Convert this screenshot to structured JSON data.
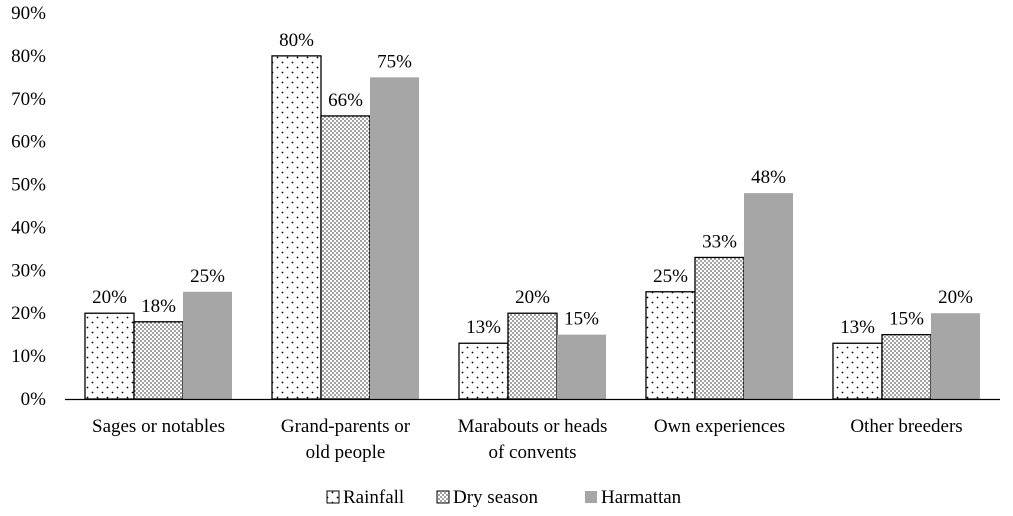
{
  "chart_data": {
    "type": "bar",
    "title": "",
    "xlabel": "",
    "ylabel": "",
    "ylim": [
      0,
      90
    ],
    "yticks": [
      "0%",
      "10%",
      "20%",
      "30%",
      "40%",
      "50%",
      "60%",
      "70%",
      "80%",
      "90%"
    ],
    "y_tick_values": [
      0,
      10,
      20,
      30,
      40,
      50,
      60,
      70,
      80,
      90
    ],
    "value_format": "percent",
    "grid": false,
    "legend_position": "bottom",
    "categories": [
      [
        "Sages or notables"
      ],
      [
        "Grand-parents or",
        "old people"
      ],
      [
        "Marabouts or heads",
        "of convents"
      ],
      [
        "Own experiences"
      ],
      [
        "Other breeders"
      ]
    ],
    "series": [
      {
        "name": "Rainfall",
        "pattern": "sparse-dots",
        "color": "#ffffff",
        "values": [
          20,
          80,
          13,
          25,
          13
        ],
        "labels": [
          "20%",
          "80%",
          "13%",
          "25%",
          "13%"
        ]
      },
      {
        "name": "Dry season",
        "pattern": "dense-dots",
        "color": "#d9d9d9",
        "values": [
          18,
          66,
          20,
          33,
          15
        ],
        "labels": [
          "18%",
          "66%",
          "20%",
          "33%",
          "15%"
        ]
      },
      {
        "name": "Harmattan",
        "pattern": "solid",
        "color": "#a6a6a6",
        "values": [
          25,
          75,
          15,
          48,
          20
        ],
        "labels": [
          "25%",
          "75%",
          "15%",
          "48%",
          "20%"
        ]
      }
    ]
  }
}
